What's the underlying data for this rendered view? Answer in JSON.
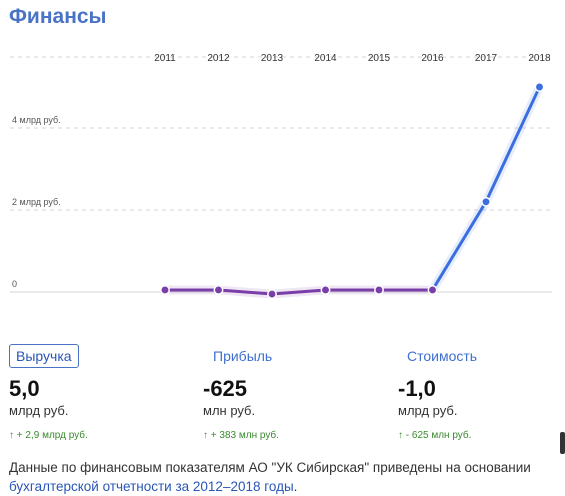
{
  "title": "Финансы",
  "chart_data": {
    "type": "line",
    "categories": [
      "2011",
      "2012",
      "2013",
      "2014",
      "2015",
      "2016",
      "2017",
      "2018"
    ],
    "series": [
      {
        "values": [
          0.05,
          0.05,
          -0.05,
          0.05,
          0.05,
          0.05,
          2.2,
          5.0
        ]
      }
    ],
    "y_tick_labels": [
      "4 млрд руб.",
      "2 млрд руб.",
      "0"
    ],
    "y_ticks": [
      4,
      2,
      0
    ],
    "ylim": [
      0,
      5.2
    ],
    "grid": true,
    "colors": {
      "early": "#7a3ea8",
      "late": "#3b6fe0"
    }
  },
  "metrics": [
    {
      "label": "Выручка",
      "value": "5,0",
      "unit": "млрд руб.",
      "delta": "↑ + 2,9 млрд руб."
    },
    {
      "label": "Прибыль",
      "value": "-625",
      "unit": "млн руб.",
      "delta": "↑ + 383 млн руб."
    },
    {
      "label": "Стоимость",
      "value": "-1,0",
      "unit": "млрд руб.",
      "delta": "↑ - 625 млн руб."
    }
  ],
  "footer": {
    "text": "Данные по финансовым показателям АО \"УК Сибирская\" приведены на основании ",
    "link": "бухгалтерской отчетности за 2012–2018 годы",
    "end": "."
  }
}
